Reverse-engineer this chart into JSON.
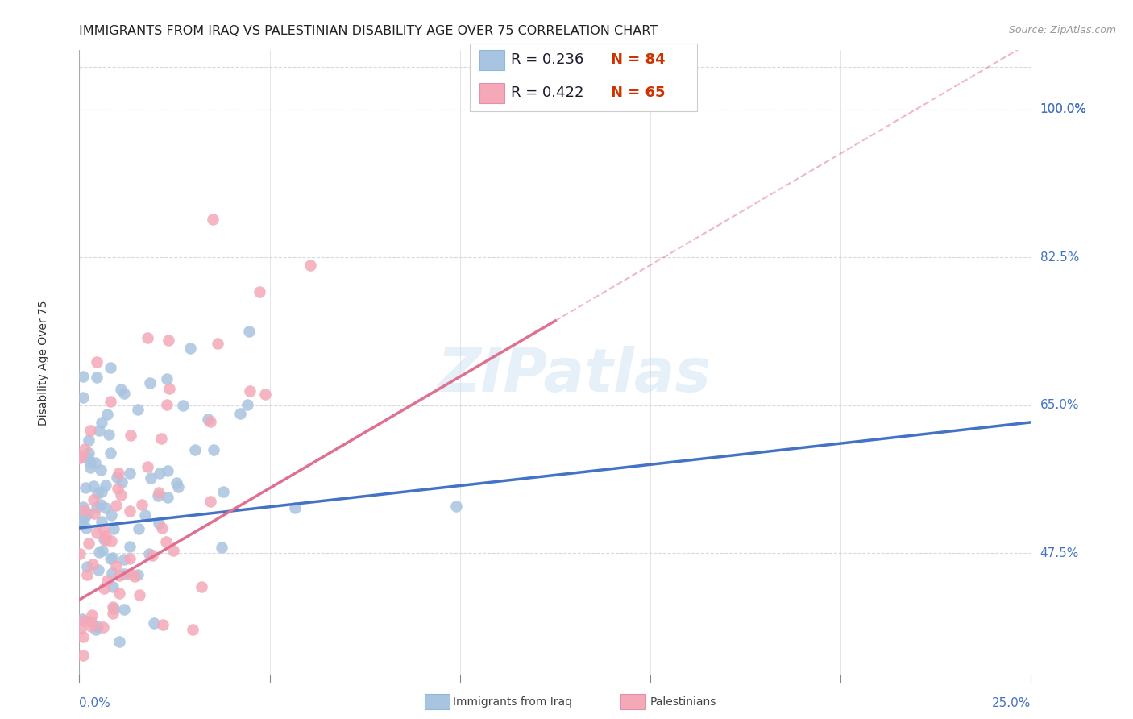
{
  "title": "IMMIGRANTS FROM IRAQ VS PALESTINIAN DISABILITY AGE OVER 75 CORRELATION CHART",
  "source": "Source: ZipAtlas.com",
  "ylabel": "Disability Age Over 75",
  "yticks": [
    47.5,
    65.0,
    82.5,
    100.0
  ],
  "ytick_labels": [
    "47.5%",
    "65.0%",
    "82.5%",
    "100.0%"
  ],
  "xlim": [
    0.0,
    25.0
  ],
  "ylim": [
    33.0,
    107.0
  ],
  "watermark": "ZIPatlas",
  "legend_iraq_r": "R = 0.236",
  "legend_iraq_n": "N = 84",
  "legend_pal_r": "R = 0.422",
  "legend_pal_n": "N = 65",
  "iraq_color": "#a8c4e0",
  "pal_color": "#f4a8b8",
  "iraq_line_color": "#4472c4",
  "pal_line_color": "#e07090",
  "background_color": "#ffffff",
  "grid_color": "#d8d8e0",
  "title_fontsize": 11.5,
  "axis_label_fontsize": 10,
  "tick_fontsize": 11,
  "legend_fontsize": 13,
  "iraq_r": 0.236,
  "iraq_n": 84,
  "pal_r": 0.422,
  "pal_n": 65,
  "iraq_line_intercept": 50.5,
  "iraq_line_slope": 0.58,
  "pal_line_intercept": 42.0,
  "pal_line_slope": 1.65,
  "pal_data_x_max": 12.5
}
